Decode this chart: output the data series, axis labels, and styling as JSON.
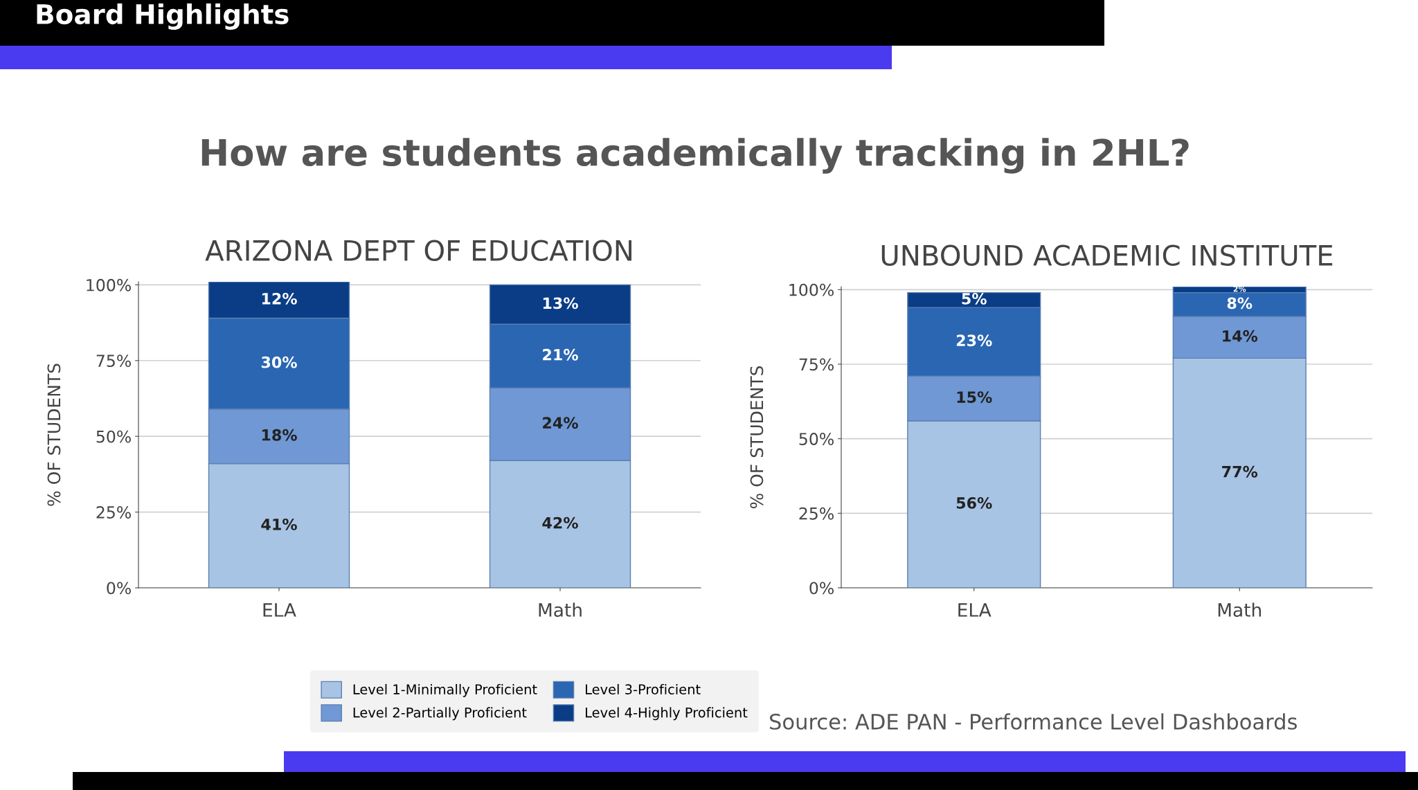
{
  "chart_data": [
    {
      "type": "bar",
      "title": "ARIZONA DEPT OF EDUCATION",
      "ylabel": "% OF STUDENTS",
      "categories": [
        "ELA",
        "Math"
      ],
      "stacked": true,
      "grid": "y",
      "legend": "bottom",
      "ylim": [
        0,
        101
      ],
      "yticks": [
        {
          "value": 0,
          "label": "0%"
        },
        {
          "value": 25,
          "label": "25%"
        },
        {
          "value": 50,
          "label": "50%"
        },
        {
          "value": 75,
          "label": "75%"
        },
        {
          "value": 100,
          "label": "100%"
        }
      ],
      "annotations": [
        "Board Highlights",
        "How are students academically tracking in 2HL?",
        "Source: ADE PAN - Performance Level Dashboards"
      ],
      "series": [
        {
          "name": "Level 1-Minimally Proficient",
          "color": "#a8c4e5",
          "values": [
            41,
            42
          ],
          "value_labels": [
            "41%",
            "42%"
          ]
        },
        {
          "name": "Level 2-Partially Proficient",
          "color": "#6f98d4",
          "values": [
            18,
            24
          ],
          "value_labels": [
            "18%",
            "24%"
          ]
        },
        {
          "name": "Level 3-Proficient",
          "color": "#2a66b2",
          "values": [
            30,
            21
          ],
          "value_labels": [
            "30%",
            "21%"
          ]
        },
        {
          "name": "Level 4-Highly Proficient",
          "color": "#0a3d86",
          "values": [
            12,
            13
          ],
          "value_labels": [
            "12%",
            "13%"
          ]
        }
      ]
    },
    {
      "type": "bar",
      "title": "UNBOUND ACADEMIC INSTITUTE",
      "ylabel": "% OF STUDENTS",
      "categories": [
        "ELA",
        "Math"
      ],
      "stacked": true,
      "grid": "y",
      "ylim": [
        0,
        101
      ],
      "yticks": [
        {
          "value": 0,
          "label": "0%"
        },
        {
          "value": 25,
          "label": "25%"
        },
        {
          "value": 50,
          "label": "50%"
        },
        {
          "value": 75,
          "label": "75%"
        },
        {
          "value": 100,
          "label": "100%"
        }
      ],
      "series": [
        {
          "color": "#a8c4e5",
          "values": [
            56,
            77
          ],
          "value_labels": [
            "56%",
            "77%"
          ]
        },
        {
          "color": "#6f98d4",
          "values": [
            15,
            14
          ],
          "value_labels": [
            "15%",
            "14%"
          ]
        },
        {
          "color": "#2a66b2",
          "values": [
            23,
            8
          ],
          "value_labels": [
            "23%",
            "8%"
          ]
        },
        {
          "color": "#0a3d86",
          "values": [
            5,
            2
          ],
          "value_labels": [
            "5%",
            "2%"
          ]
        }
      ]
    }
  ]
}
